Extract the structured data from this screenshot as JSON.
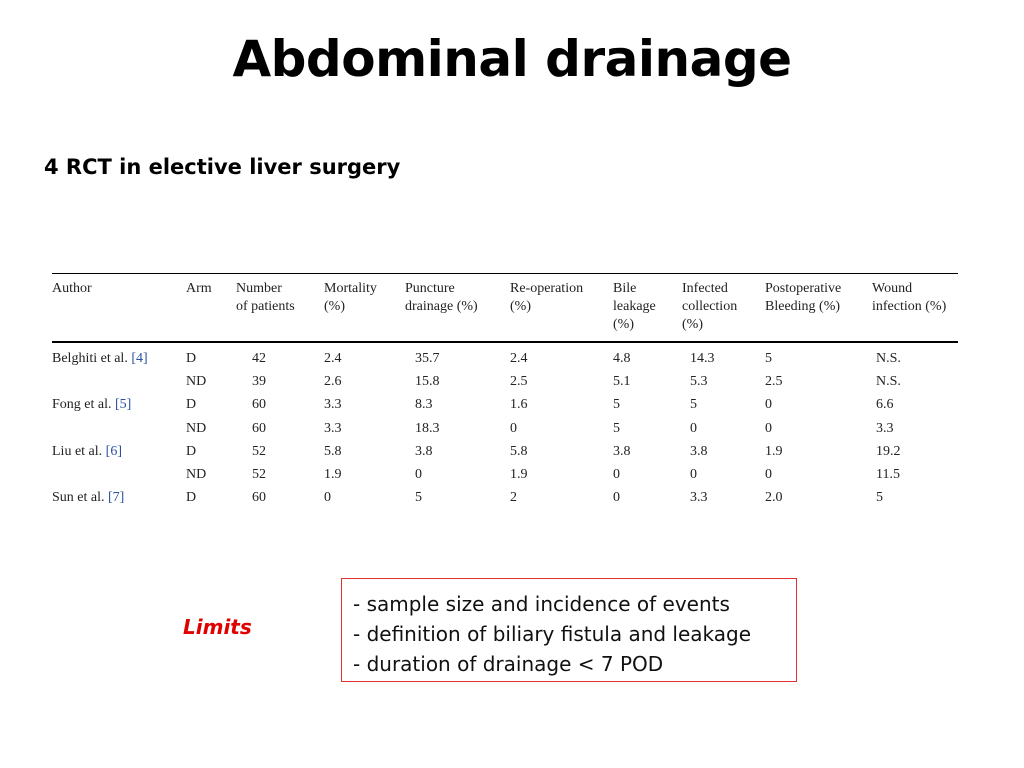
{
  "title": "Abdominal drainage",
  "subtitle": "4 RCT in elective liver surgery",
  "table": {
    "headers": [
      [
        "Author"
      ],
      [
        "Arm"
      ],
      [
        "Number",
        "of patients"
      ],
      [
        "Mortality",
        "(%)"
      ],
      [
        "Puncture",
        "drainage (%)"
      ],
      [
        "Re-operation",
        "(%)"
      ],
      [
        "Bile",
        "leakage",
        "(%)"
      ],
      [
        "Infected",
        "collection",
        "(%)"
      ],
      [
        "Postoperative",
        "Bleeding (%)"
      ],
      [
        "Wound",
        "infection (%)"
      ]
    ],
    "rows": [
      {
        "author": "Belghiti et al.",
        "ref": "[4]",
        "cells": [
          "D",
          "42",
          "2.4",
          "35.7",
          "2.4",
          "4.8",
          "14.3",
          "5",
          "N.S."
        ]
      },
      {
        "author": "",
        "ref": "",
        "cells": [
          "ND",
          "39",
          "2.6",
          "15.8",
          "2.5",
          "5.1",
          "5.3",
          "2.5",
          "N.S."
        ]
      },
      {
        "author": "Fong et al.",
        "ref": "[5]",
        "cells": [
          "D",
          "60",
          "3.3",
          "8.3",
          "1.6",
          "5",
          "5",
          "0",
          "6.6"
        ]
      },
      {
        "author": "",
        "ref": "",
        "cells": [
          "ND",
          "60",
          "3.3",
          "18.3",
          "0",
          "5",
          "0",
          "0",
          "3.3"
        ]
      },
      {
        "author": "Liu et al.",
        "ref": "[6]",
        "cells": [
          "D",
          "52",
          "5.8",
          "3.8",
          "5.8",
          "3.8",
          "3.8",
          "1.9",
          "19.2"
        ]
      },
      {
        "author": "",
        "ref": "",
        "cells": [
          "ND",
          "52",
          "1.9",
          "0",
          "1.9",
          "0",
          "0",
          "0",
          "11.5"
        ]
      },
      {
        "author": "Sun et al.",
        "ref": "[7]",
        "cells": [
          "D",
          "60",
          "0",
          "5",
          "2",
          "0",
          "3.3",
          "2.0",
          "5"
        ]
      }
    ]
  },
  "limits": {
    "label": "Limits",
    "items": [
      "- sample size and incidence of events",
      "- definition of biliary fistula and leakage",
      "- duration of drainage < 7 POD"
    ]
  },
  "colors": {
    "limits_label": "#e00000",
    "limits_border": "#e03030",
    "reference_link": "#2a4fa0"
  }
}
